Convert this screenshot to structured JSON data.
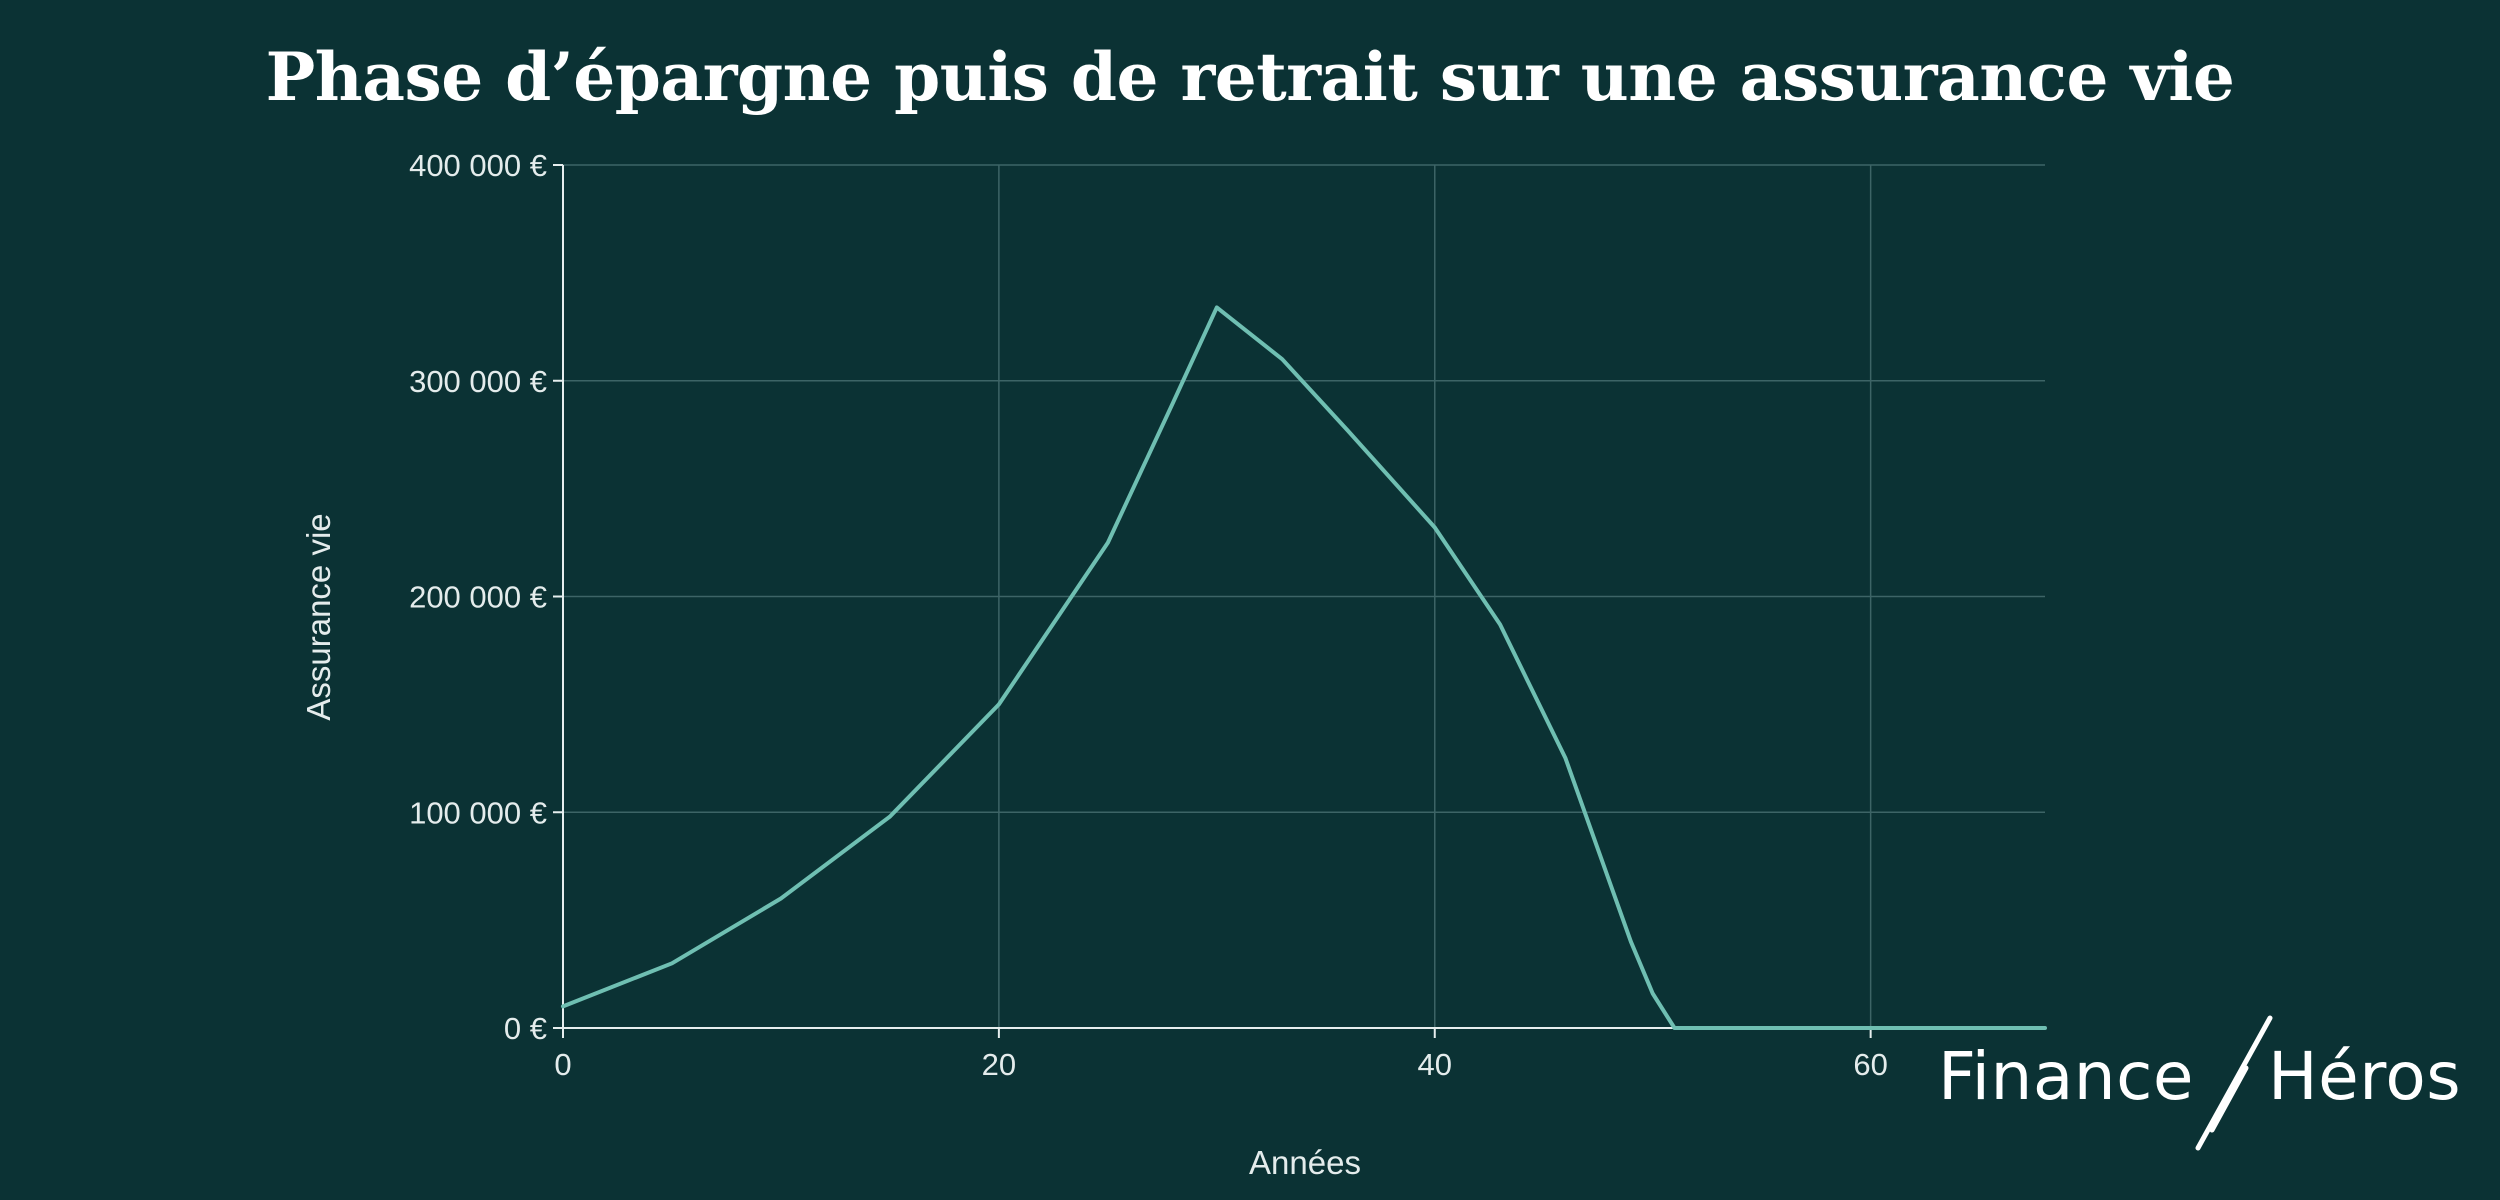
{
  "chart_data": {
    "type": "line",
    "title": "Phase d’épargne puis de retrait sur une assurance vie",
    "xlabel": "Années",
    "ylabel": "Assurance vie",
    "xlim": [
      0,
      68
    ],
    "ylim": [
      0,
      400000
    ],
    "x_ticks": [
      0,
      20,
      40,
      60
    ],
    "y_ticks": [
      0,
      100000,
      200000,
      300000,
      400000
    ],
    "x_tick_labels": [
      "0",
      "20",
      "40",
      "60"
    ],
    "y_tick_labels": [
      "0 €",
      "100 000 €",
      "200 000 €",
      "300 000 €",
      "400 000 €"
    ],
    "grid": true,
    "legend": "none",
    "series": [
      {
        "color": "#6fbfb2",
        "x": [
          0,
          5,
          10,
          15,
          20,
          25,
          28,
          30,
          33,
          36,
          40,
          43,
          46,
          49,
          50,
          51,
          55,
          60,
          65,
          68
        ],
        "y": [
          10000,
          30000,
          60000,
          98000,
          150000,
          225000,
          290000,
          334000,
          310000,
          277000,
          232000,
          187000,
          125000,
          40000,
          16000,
          0,
          0,
          0,
          0,
          0
        ]
      }
    ]
  },
  "logo": {
    "left_word": "Finance",
    "right_word": "Héros"
  },
  "colors": {
    "background": "#0b3234",
    "line": "#6fbfb2",
    "grid": "#3d6466",
    "text": "#e4ecec"
  }
}
